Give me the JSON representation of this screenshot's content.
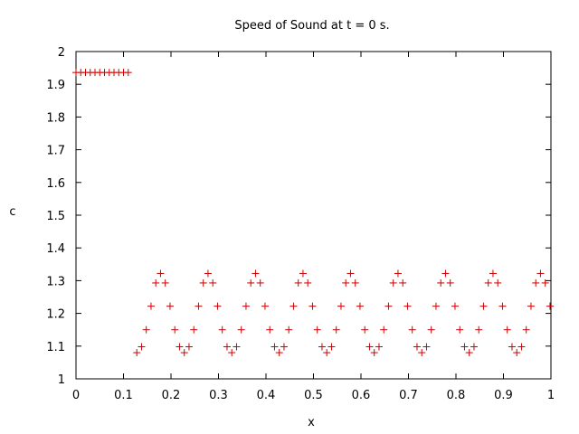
{
  "chart_data": {
    "type": "scatter",
    "title": "Speed of Sound at t = 0 s.",
    "xlabel": "x",
    "ylabel": "c",
    "xlim": [
      0,
      1
    ],
    "ylim": [
      1,
      2
    ],
    "xticks": [
      "0",
      "0.1",
      "0.2",
      "0.3",
      "0.4",
      "0.5",
      "0.6",
      "0.7",
      "0.8",
      "0.9",
      "1"
    ],
    "yticks": [
      "1",
      "1.1",
      "1.2",
      "1.3",
      "1.4",
      "1.5",
      "1.6",
      "1.7",
      "1.8",
      "1.9",
      "2"
    ],
    "marker": "+",
    "color": "#cc0000",
    "grid": false,
    "legend": "none",
    "series": [
      {
        "points": [
          [
            0.0,
            1.936
          ],
          [
            0.01,
            1.936
          ],
          [
            0.02,
            1.936
          ],
          [
            0.03,
            1.936
          ],
          [
            0.04,
            1.936
          ],
          [
            0.05,
            1.936
          ],
          [
            0.06,
            1.936
          ],
          [
            0.07,
            1.936
          ],
          [
            0.08,
            1.936
          ],
          [
            0.09,
            1.936
          ],
          [
            0.1,
            1.936
          ],
          [
            0.11,
            1.936
          ],
          [
            0.128,
            1.08
          ],
          [
            0.138,
            1.098
          ],
          [
            0.148,
            1.15
          ],
          [
            0.158,
            1.222
          ],
          [
            0.168,
            1.293
          ],
          [
            0.178,
            1.322
          ],
          [
            0.188,
            1.293
          ],
          [
            0.198,
            1.222
          ],
          [
            0.208,
            1.15
          ],
          [
            0.218,
            1.098
          ],
          [
            0.228,
            1.08
          ],
          [
            0.238,
            1.098
          ],
          [
            0.248,
            1.15
          ],
          [
            0.258,
            1.222
          ],
          [
            0.268,
            1.293
          ],
          [
            0.278,
            1.322
          ],
          [
            0.288,
            1.293
          ],
          [
            0.298,
            1.222
          ],
          [
            0.308,
            1.15
          ],
          [
            0.318,
            1.098
          ],
          [
            0.328,
            1.08
          ],
          [
            0.338,
            1.098
          ],
          [
            0.348,
            1.15
          ],
          [
            0.358,
            1.222
          ],
          [
            0.368,
            1.293
          ],
          [
            0.378,
            1.322
          ],
          [
            0.388,
            1.293
          ],
          [
            0.398,
            1.222
          ],
          [
            0.408,
            1.15
          ],
          [
            0.418,
            1.098
          ],
          [
            0.428,
            1.08
          ],
          [
            0.438,
            1.098
          ],
          [
            0.448,
            1.15
          ],
          [
            0.458,
            1.222
          ],
          [
            0.468,
            1.293
          ],
          [
            0.478,
            1.322
          ],
          [
            0.488,
            1.293
          ],
          [
            0.498,
            1.222
          ],
          [
            0.508,
            1.15
          ],
          [
            0.518,
            1.098
          ],
          [
            0.528,
            1.08
          ],
          [
            0.538,
            1.098
          ],
          [
            0.548,
            1.15
          ],
          [
            0.558,
            1.222
          ],
          [
            0.568,
            1.293
          ],
          [
            0.578,
            1.322
          ],
          [
            0.588,
            1.293
          ],
          [
            0.598,
            1.222
          ],
          [
            0.608,
            1.15
          ],
          [
            0.618,
            1.098
          ],
          [
            0.628,
            1.08
          ],
          [
            0.638,
            1.098
          ],
          [
            0.648,
            1.15
          ],
          [
            0.658,
            1.222
          ],
          [
            0.668,
            1.293
          ],
          [
            0.678,
            1.322
          ],
          [
            0.688,
            1.293
          ],
          [
            0.698,
            1.222
          ],
          [
            0.708,
            1.15
          ],
          [
            0.718,
            1.098
          ],
          [
            0.728,
            1.08
          ],
          [
            0.738,
            1.098
          ],
          [
            0.748,
            1.15
          ],
          [
            0.758,
            1.222
          ],
          [
            0.768,
            1.293
          ],
          [
            0.778,
            1.322
          ],
          [
            0.788,
            1.293
          ],
          [
            0.798,
            1.222
          ],
          [
            0.808,
            1.15
          ],
          [
            0.818,
            1.098
          ],
          [
            0.828,
            1.08
          ],
          [
            0.838,
            1.098
          ],
          [
            0.848,
            1.15
          ],
          [
            0.858,
            1.222
          ],
          [
            0.868,
            1.293
          ],
          [
            0.878,
            1.322
          ],
          [
            0.888,
            1.293
          ],
          [
            0.898,
            1.222
          ],
          [
            0.908,
            1.15
          ],
          [
            0.918,
            1.098
          ],
          [
            0.928,
            1.08
          ],
          [
            0.938,
            1.098
          ],
          [
            0.948,
            1.15
          ],
          [
            0.958,
            1.222
          ],
          [
            0.968,
            1.293
          ],
          [
            0.978,
            1.322
          ],
          [
            0.988,
            1.293
          ],
          [
            0.998,
            1.222
          ]
        ]
      }
    ]
  }
}
